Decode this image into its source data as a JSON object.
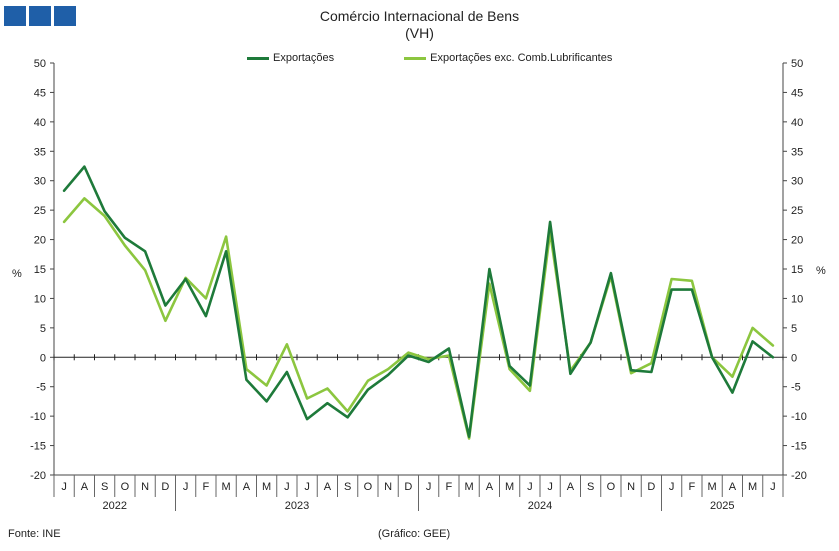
{
  "header": {
    "title": "Comércio Internacional de Bens",
    "subtitle": "(VH)"
  },
  "footer": {
    "source": "Fonte: INE",
    "credit": "(Gráfico: GEE)"
  },
  "chart_data": {
    "type": "line",
    "title": "Comércio Internacional de Bens",
    "subtitle": "(VH)",
    "ylabel": "%",
    "y2label": "%",
    "ylim": [
      -20,
      50
    ],
    "yticks": [
      -20,
      -15,
      -10,
      -5,
      0,
      5,
      10,
      15,
      20,
      25,
      30,
      35,
      40,
      45,
      50
    ],
    "grid": false,
    "legend_position": "top",
    "x": [
      "J",
      "A",
      "S",
      "O",
      "N",
      "D",
      "J",
      "F",
      "M",
      "A",
      "M",
      "J",
      "J",
      "A",
      "S",
      "O",
      "N",
      "D",
      "J",
      "F",
      "M",
      "A",
      "M",
      "J",
      "J",
      "A",
      "S",
      "O",
      "N",
      "D",
      "J",
      "F",
      "M",
      "A",
      "M",
      "J"
    ],
    "years": [
      {
        "label": "2022",
        "start": 0,
        "end": 5
      },
      {
        "label": "2023",
        "start": 6,
        "end": 17
      },
      {
        "label": "2024",
        "start": 18,
        "end": 29
      },
      {
        "label": "2025",
        "start": 30,
        "end": 35
      }
    ],
    "series": [
      {
        "name": "Exportações",
        "color": "#1e7a3a",
        "values": [
          28.3,
          32.4,
          24.8,
          20.3,
          18.0,
          8.8,
          13.3,
          7.0,
          18.0,
          -3.8,
          -7.5,
          -2.5,
          -10.5,
          -7.8,
          -10.2,
          -5.5,
          -3.0,
          0.3,
          -0.8,
          1.5,
          -13.5,
          15.0,
          -1.5,
          -4.8,
          23.0,
          -2.8,
          2.5,
          14.3,
          -2.2,
          -2.5,
          11.5,
          11.5,
          0.0,
          -6.0,
          2.7,
          0.0
        ]
      },
      {
        "name": "Exportações exc. Comb.Lubrificantes",
        "color": "#8cc63f",
        "values": [
          23.0,
          27.0,
          24.0,
          19.0,
          14.8,
          6.2,
          13.5,
          10.0,
          20.5,
          -2.0,
          -4.8,
          2.2,
          -7.0,
          -5.3,
          -9.2,
          -4.0,
          -2.0,
          0.8,
          -0.3,
          0.3,
          -13.8,
          12.5,
          -2.0,
          -5.7,
          21.3,
          -2.3,
          2.5,
          13.8,
          -2.7,
          -1.0,
          13.3,
          13.0,
          0.0,
          -3.3,
          5.0,
          2.0
        ]
      }
    ]
  }
}
